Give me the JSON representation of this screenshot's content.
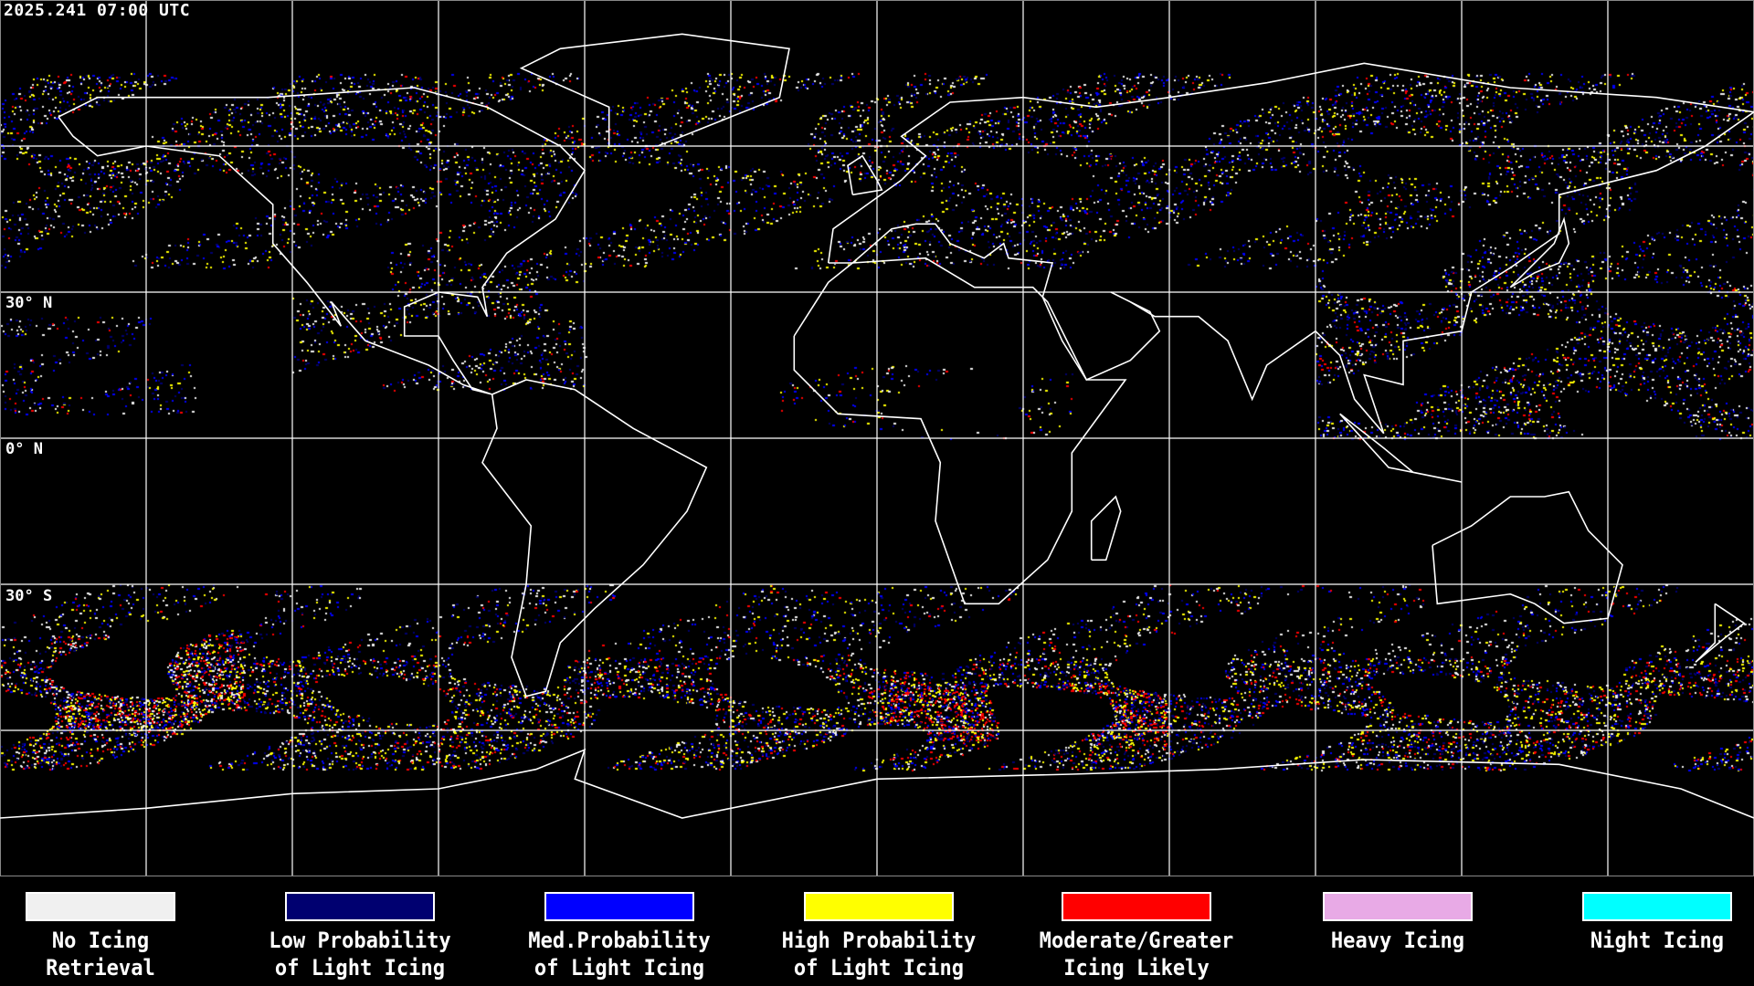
{
  "header": {
    "timestamp": "2025.241 07:00 UTC"
  },
  "map": {
    "projection": "equirectangular",
    "graticule_spacing_deg": 30,
    "latitude_labels": [
      "30° N",
      "0° N",
      "30° S"
    ],
    "colors": {
      "background": "#000000",
      "coastline": "#ffffff",
      "grid": "#ffffff"
    }
  },
  "legend": {
    "items": [
      {
        "line1": "No Icing",
        "line2": "Retrieval",
        "color": "#f0f0f0"
      },
      {
        "line1": "Low Probability",
        "line2": "of Light Icing",
        "color": "#000070"
      },
      {
        "line1": "Med.Probability",
        "line2": "of Light Icing",
        "color": "#0000ff"
      },
      {
        "line1": "High Probability",
        "line2": "of Light Icing",
        "color": "#ffff00"
      },
      {
        "line1": "Moderate/Greater",
        "line2": "Icing Likely",
        "color": "#ff0000"
      },
      {
        "line1": "Heavy Icing",
        "line2": "",
        "color": "#e8aae6"
      },
      {
        "line1": "Night Icing",
        "line2": "",
        "color": "#00ffff"
      }
    ]
  }
}
